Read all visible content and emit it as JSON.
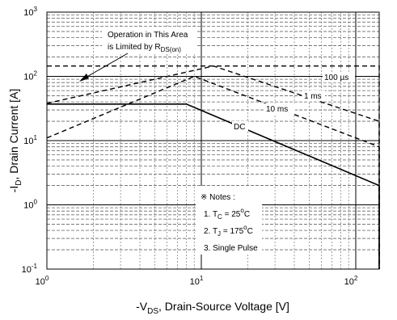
{
  "chart_data": {
    "type": "line",
    "xscale": "log",
    "yscale": "log",
    "xlim": [
      1,
      200
    ],
    "ylim": [
      0.1,
      1000
    ],
    "x_ticks": [
      {
        "base": "10",
        "exp": "0"
      },
      {
        "base": "10",
        "exp": "1"
      },
      {
        "base": "10",
        "exp": "2"
      }
    ],
    "y_ticks": [
      {
        "base": "10",
        "exp": "-1"
      },
      {
        "base": "10",
        "exp": "0"
      },
      {
        "base": "10",
        "exp": "1"
      },
      {
        "base": "10",
        "exp": "2"
      },
      {
        "base": "10",
        "exp": "3"
      }
    ],
    "xlabel": {
      "prefix": "-V",
      "sub": "DS",
      "suffix": ", Drain-Source Voltage [V]"
    },
    "ylabel": {
      "prefix": "-I",
      "sub": "D",
      "suffix": ", Drain Current [A]"
    },
    "grid": true,
    "series": [
      {
        "name": "DC",
        "style": "solid",
        "x": [
          1,
          8,
          150,
          150
        ],
        "y": [
          37,
          37,
          2.0,
          0.1
        ]
      },
      {
        "name": "10 ms",
        "style": "dashed",
        "x": [
          1,
          9,
          150,
          150
        ],
        "y": [
          11,
          100,
          8,
          0.1
        ]
      },
      {
        "name": "1 ms",
        "style": "dashed",
        "x": [
          1,
          12,
          150,
          150
        ],
        "y": [
          38,
          145,
          20,
          0.1
        ]
      },
      {
        "name": "100 µs",
        "style": "dashed",
        "x": [
          1,
          150,
          150
        ],
        "y": [
          145,
          145,
          0.1
        ]
      }
    ],
    "annotations": {
      "rds": {
        "line1": "Operation in This Area",
        "line2": "is Limited by R",
        "sub": "DS(on)"
      },
      "labels": [
        {
          "text": "100 µs",
          "x": 115,
          "y": 76
        },
        {
          "text": "1 ms",
          "x": 73,
          "y": 47
        },
        {
          "text": "10 ms",
          "x": 43,
          "y": 29
        },
        {
          "text": "DC",
          "x": 20,
          "y": 19
        }
      ],
      "notes": {
        "title": "※ Notes :",
        "tc": {
          "prefix": "1. T",
          "sub": "C",
          "value": " = 25",
          "unit": "C"
        },
        "tj": {
          "prefix": "2. T",
          "sub": "J",
          "value": " = 175",
          "unit": "C"
        },
        "pulse": "3. Single Pulse"
      }
    }
  }
}
